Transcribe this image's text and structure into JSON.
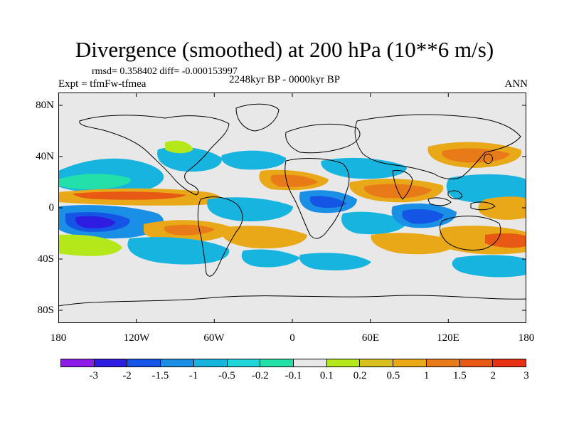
{
  "title": "Divergence (smoothed) at 200 hPa (10**6 m/s)",
  "stats": "rmsd= 0.358402 diff= -0.000153997",
  "experiment": "Expt = tfmFw-tfmea",
  "period": "2248kyr BP - 0000kyr BP",
  "season": "ANN",
  "y_ticks": [
    "80N",
    "40N",
    "0",
    "40S",
    "80S"
  ],
  "x_ticks": [
    "180",
    "120W",
    "60W",
    "0",
    "60E",
    "120E",
    "180"
  ],
  "colorbar": {
    "labels": [
      "-3",
      "-2",
      "-1.5",
      "-1",
      "-0.5",
      "-0.2",
      "-0.1",
      "0.1",
      "0.2",
      "0.5",
      "1",
      "1.5",
      "2",
      "3"
    ],
    "colors": [
      "#8c1ee8",
      "#2e1ce0",
      "#1455e6",
      "#1a8fe6",
      "#18b4e0",
      "#20d4d8",
      "#22e0a8",
      "#e8e8e8",
      "#b4e81a",
      "#d8c020",
      "#e8a818",
      "#e87a18",
      "#e85a14",
      "#e83014"
    ]
  },
  "map": {
    "background": "#e8e8e8",
    "projection": "cylindrical equidistant",
    "lon_range": [
      -180,
      180
    ],
    "lat_range": [
      -90,
      90
    ]
  }
}
